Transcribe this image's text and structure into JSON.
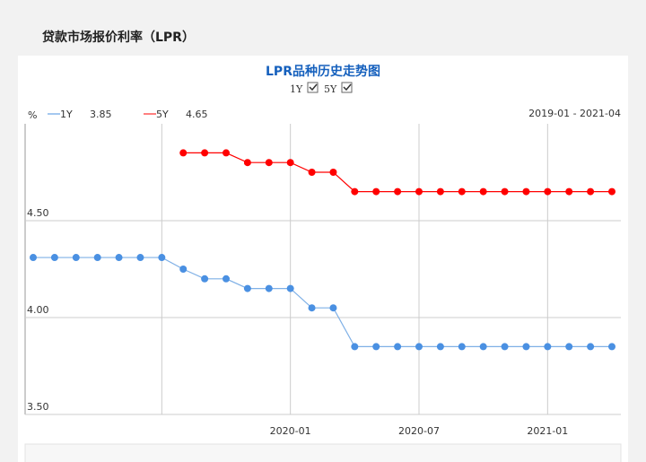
{
  "header": {
    "title": "贷款市场报价利率（LPR）"
  },
  "chart_data": {
    "type": "line",
    "title": "LPR品种历史走势图",
    "y_label": "%",
    "date_range": "2019-01 - 2021-04",
    "categories": [
      null,
      null,
      null,
      null,
      null,
      null,
      null,
      null,
      null,
      null,
      null,
      null,
      "2020-01",
      null,
      null,
      null,
      null,
      null,
      "2020-07",
      null,
      null,
      null,
      null,
      null,
      "2021-01",
      null,
      null,
      null
    ],
    "series": [
      {
        "name": "1Y",
        "color": "#4a90e2",
        "values": [
          4.31,
          4.31,
          4.31,
          4.31,
          4.31,
          4.31,
          4.31,
          4.25,
          4.2,
          4.2,
          4.15,
          4.15,
          4.15,
          4.05,
          4.05,
          3.85,
          3.85,
          3.85,
          3.85,
          3.85,
          3.85,
          3.85,
          3.85,
          3.85,
          3.85,
          3.85,
          3.85,
          3.85
        ]
      },
      {
        "name": "5Y",
        "color": "#ff0000",
        "values": [
          null,
          null,
          null,
          null,
          null,
          null,
          null,
          4.85,
          4.85,
          4.85,
          4.8,
          4.8,
          4.8,
          4.75,
          4.75,
          4.65,
          4.65,
          4.65,
          4.65,
          4.65,
          4.65,
          4.65,
          4.65,
          4.65,
          4.65,
          4.65,
          4.65,
          4.65
        ]
      }
    ],
    "ylim": [
      3.5,
      5.0
    ],
    "yticks": [
      {
        "value": 3.5,
        "label": "3.50"
      },
      {
        "value": 4.0,
        "label": "4.00"
      },
      {
        "value": 4.5,
        "label": "4.50"
      }
    ],
    "grid": true
  }
}
